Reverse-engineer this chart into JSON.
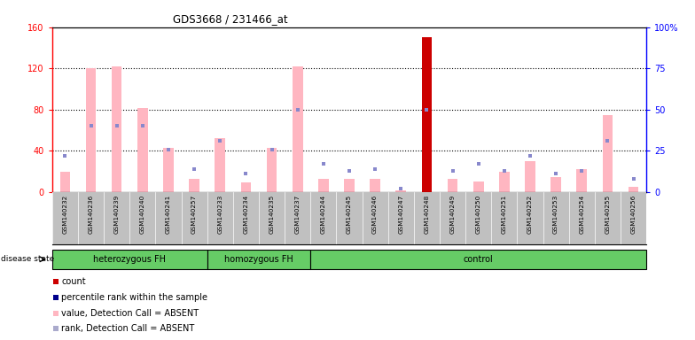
{
  "title": "GDS3668 / 231466_at",
  "samples": [
    "GSM140232",
    "GSM140236",
    "GSM140239",
    "GSM140240",
    "GSM140241",
    "GSM140257",
    "GSM140233",
    "GSM140234",
    "GSM140235",
    "GSM140237",
    "GSM140244",
    "GSM140245",
    "GSM140246",
    "GSM140247",
    "GSM140248",
    "GSM140249",
    "GSM140250",
    "GSM140251",
    "GSM140252",
    "GSM140253",
    "GSM140254",
    "GSM140255",
    "GSM140256"
  ],
  "group_boundaries": [
    0,
    6,
    10,
    23
  ],
  "group_labels": [
    "heterozygous FH",
    "homozygous FH",
    "control"
  ],
  "pink_bar_values": [
    20,
    120,
    122,
    82,
    43,
    13,
    52,
    9,
    43,
    122,
    13,
    13,
    13,
    2,
    150,
    13,
    10,
    20,
    30,
    15,
    22,
    75,
    5
  ],
  "blue_dot_values": [
    22,
    40,
    40,
    40,
    26,
    14,
    31,
    11,
    26,
    50,
    17,
    13,
    14,
    2,
    50,
    13,
    17,
    13,
    22,
    11,
    13,
    31,
    8
  ],
  "red_bar_index": 14,
  "red_bar_value": 150,
  "ylim_left": [
    0,
    160
  ],
  "ylim_right": [
    0,
    100
  ],
  "yticks_left": [
    0,
    40,
    80,
    120,
    160
  ],
  "yticks_right": [
    0,
    25,
    50,
    75,
    100
  ],
  "ytick_labels_right": [
    "0",
    "25",
    "50",
    "75",
    "100%"
  ],
  "pink_color": "#FFB6C1",
  "red_color": "#CC0000",
  "blue_dot_color": "#8888CC",
  "blue_legend_color": "#4444AA",
  "xticklabel_bg": "#C0C0C0",
  "group_color": "#66CC66",
  "group_border_color": "#000000",
  "legend_colors": [
    "#CC0000",
    "#00008B",
    "#FFB6C1",
    "#AAAACC"
  ],
  "legend_labels": [
    "count",
    "percentile rank within the sample",
    "value, Detection Call = ABSENT",
    "rank, Detection Call = ABSENT"
  ],
  "grid_yticks": [
    40,
    80,
    120
  ]
}
